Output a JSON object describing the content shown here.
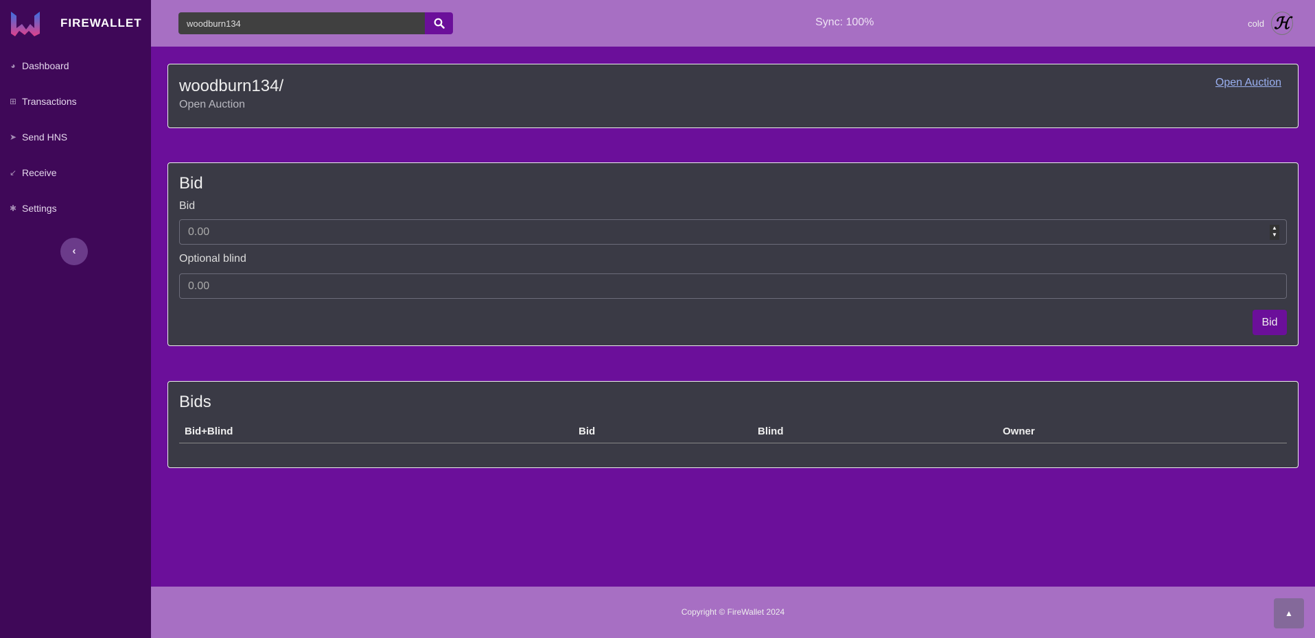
{
  "brand": {
    "name": "FIREWALLET"
  },
  "sidebar": {
    "items": [
      {
        "label": "Dashboard",
        "icon": "dashboard-icon"
      },
      {
        "label": "Transactions",
        "icon": "table-icon"
      },
      {
        "label": "Send HNS",
        "icon": "send-icon"
      },
      {
        "label": "Receive",
        "icon": "receive-icon"
      },
      {
        "label": "Settings",
        "icon": "gear-icon"
      }
    ]
  },
  "topbar": {
    "search_value": "woodburn134",
    "sync": "Sync: 100%",
    "wallet": "cold"
  },
  "domain": {
    "name": "woodburn134/",
    "status": "Open Auction",
    "link": "Open Auction"
  },
  "bid": {
    "title": "Bid",
    "bid_label": "Bid",
    "bid_placeholder": "0.00",
    "blind_label": "Optional blind",
    "blind_placeholder": "0.00",
    "button": "Bid"
  },
  "bids": {
    "title": "Bids",
    "columns": [
      "Bid+Blind",
      "Bid",
      "Blind",
      "Owner"
    ]
  },
  "footer": {
    "copyright": "Copyright © FireWallet 2024"
  },
  "colors": {
    "sidebar": "#3f0858",
    "main": "#6b0f9a",
    "topbar": "#a76fc3",
    "card": "#3a3a45"
  }
}
